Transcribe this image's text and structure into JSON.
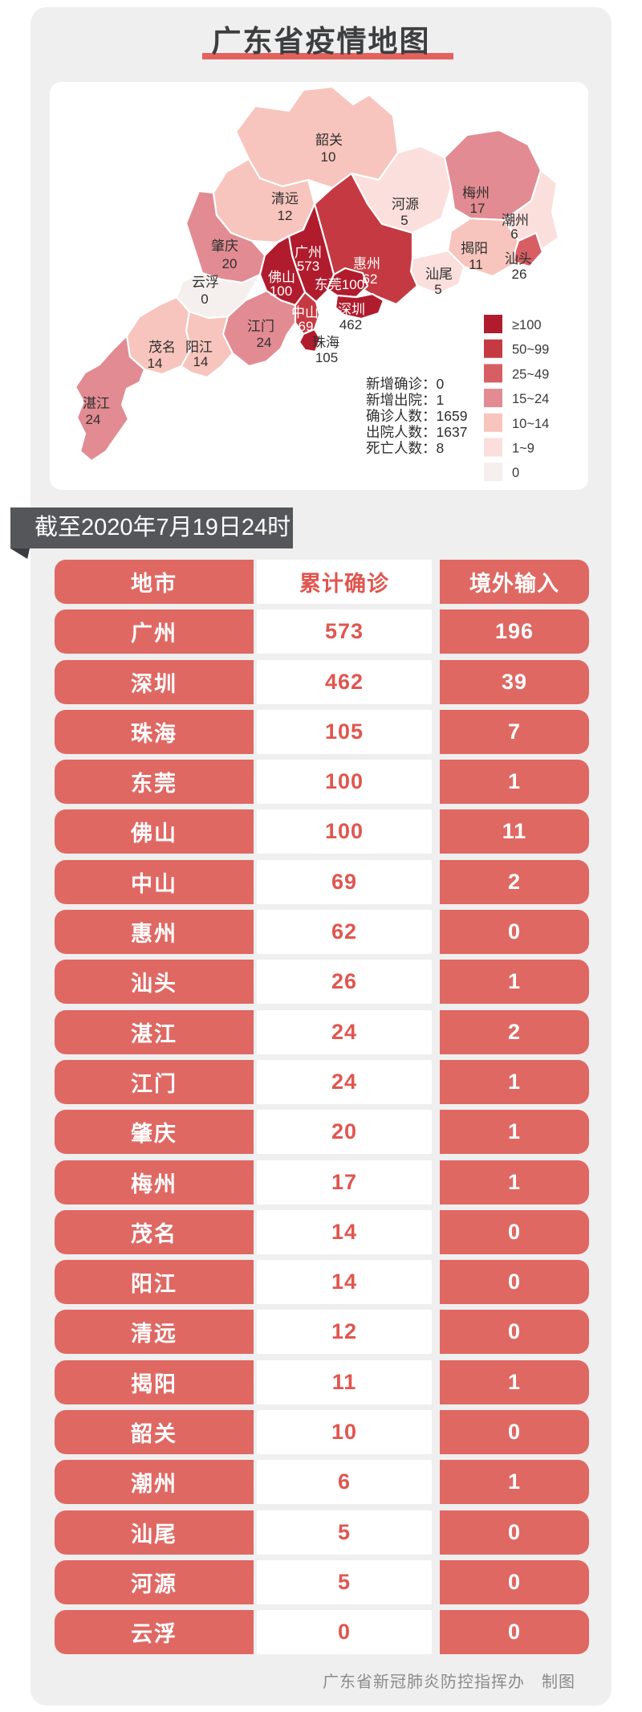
{
  "page": {
    "title": "广东省疫情地图",
    "badge": "截至2020年7月19日24时",
    "footer": "广东省新冠肺炎防控指挥办　制图"
  },
  "colors": {
    "card_bg": "#efefef",
    "title_text": "#3d3e40",
    "title_underline": "#e4625e",
    "badge_bg": "#55565a",
    "badge_fold": "#3b3c3f",
    "table_salmon": "#df6863",
    "table_red_text": "#e0564f",
    "footer_gray": "#8b8b8b",
    "map_dark_label": "#2f2f2f",
    "map_light_label": "#ffffff"
  },
  "map": {
    "legend": [
      {
        "label": "≥100",
        "color": "#b01c2d"
      },
      {
        "label": "50~99",
        "color": "#c53a42"
      },
      {
        "label": "25~49",
        "color": "#d75f64"
      },
      {
        "label": "15~24",
        "color": "#e28b92"
      },
      {
        "label": "10~14",
        "color": "#f7c5bd"
      },
      {
        "label": "1~9",
        "color": "#fbdfdc"
      },
      {
        "label": "0",
        "color": "#f5f0ee"
      }
    ],
    "stats": [
      "新增确诊：0",
      "新增出院：1",
      "确诊人数：1659",
      "出院人数：1637",
      "死亡人数：8"
    ],
    "regions": [
      {
        "id": "zhanjiang",
        "name": "湛江",
        "value": "24",
        "bucket": 3
      },
      {
        "id": "maoming",
        "name": "茂名",
        "value": "14",
        "bucket": 4
      },
      {
        "id": "yangjiang",
        "name": "阳江",
        "value": "14",
        "bucket": 4
      },
      {
        "id": "yunfu",
        "name": "云浮",
        "value": "0",
        "bucket": 6
      },
      {
        "id": "zhaoqing",
        "name": "肇庆",
        "value": "20",
        "bucket": 3
      },
      {
        "id": "qingyuan",
        "name": "清远",
        "value": "12",
        "bucket": 4
      },
      {
        "id": "shaoguan",
        "name": "韶关",
        "value": "10",
        "bucket": 4
      },
      {
        "id": "heyuan",
        "name": "河源",
        "value": "5",
        "bucket": 5
      },
      {
        "id": "meizhou",
        "name": "梅州",
        "value": "17",
        "bucket": 3
      },
      {
        "id": "chaozhou",
        "name": "潮州",
        "value": "6",
        "bucket": 5
      },
      {
        "id": "jieyang",
        "name": "揭阳",
        "value": "11",
        "bucket": 4
      },
      {
        "id": "shantou",
        "name": "汕头",
        "value": "26",
        "bucket": 2
      },
      {
        "id": "shanwei",
        "name": "汕尾",
        "value": "5",
        "bucket": 5
      },
      {
        "id": "jiangmen",
        "name": "江门",
        "value": "24",
        "bucket": 3
      },
      {
        "id": "huizhou",
        "name": "惠州",
        "value": "62",
        "bucket": 1
      },
      {
        "id": "guangzhou",
        "name": "广州",
        "value": "573",
        "bucket": 0
      },
      {
        "id": "foshan",
        "name": "佛山",
        "value": "100",
        "bucket": 0
      },
      {
        "id": "zhongshan",
        "name": "中山",
        "value": "69",
        "bucket": 1
      },
      {
        "id": "dongguan",
        "name": "东莞",
        "value": "100",
        "bucket": 0
      },
      {
        "id": "shenzhen",
        "name": "深圳",
        "value": "462",
        "bucket": 0
      },
      {
        "id": "zhuhai",
        "name": "珠海",
        "value": "105",
        "bucket": 0
      }
    ]
  },
  "table": {
    "headers": [
      "地市",
      "累计确诊",
      "境外输入"
    ],
    "rows": [
      {
        "city": "广州",
        "confirmed": "573",
        "imported": "196"
      },
      {
        "city": "深圳",
        "confirmed": "462",
        "imported": "39"
      },
      {
        "city": "珠海",
        "confirmed": "105",
        "imported": "7"
      },
      {
        "city": "东莞",
        "confirmed": "100",
        "imported": "1"
      },
      {
        "city": "佛山",
        "confirmed": "100",
        "imported": "11"
      },
      {
        "city": "中山",
        "confirmed": "69",
        "imported": "2"
      },
      {
        "city": "惠州",
        "confirmed": "62",
        "imported": "0"
      },
      {
        "city": "汕头",
        "confirmed": "26",
        "imported": "1"
      },
      {
        "city": "湛江",
        "confirmed": "24",
        "imported": "2"
      },
      {
        "city": "江门",
        "confirmed": "24",
        "imported": "1"
      },
      {
        "city": "肇庆",
        "confirmed": "20",
        "imported": "1"
      },
      {
        "city": "梅州",
        "confirmed": "17",
        "imported": "1"
      },
      {
        "city": "茂名",
        "confirmed": "14",
        "imported": "0"
      },
      {
        "city": "阳江",
        "confirmed": "14",
        "imported": "0"
      },
      {
        "city": "清远",
        "confirmed": "12",
        "imported": "0"
      },
      {
        "city": "揭阳",
        "confirmed": "11",
        "imported": "1"
      },
      {
        "city": "韶关",
        "confirmed": "10",
        "imported": "0"
      },
      {
        "city": "潮州",
        "confirmed": "6",
        "imported": "1"
      },
      {
        "city": "汕尾",
        "confirmed": "5",
        "imported": "0"
      },
      {
        "city": "河源",
        "confirmed": "5",
        "imported": "0"
      },
      {
        "city": "云浮",
        "confirmed": "0",
        "imported": "0"
      }
    ]
  },
  "chart_data": {
    "type": "heatmap",
    "title": "广东省疫情地图",
    "as_of": "截至2020年7月19日24时",
    "legend_buckets": [
      "≥100",
      "50~99",
      "25~49",
      "15~24",
      "10~14",
      "1~9",
      "0"
    ],
    "summary": {
      "新增确诊": 0,
      "新增出院": 1,
      "确诊人数": 1659,
      "出院人数": 1637,
      "死亡人数": 8
    },
    "categories": [
      "广州",
      "深圳",
      "珠海",
      "东莞",
      "佛山",
      "中山",
      "惠州",
      "汕头",
      "湛江",
      "江门",
      "肇庆",
      "梅州",
      "茂名",
      "阳江",
      "清远",
      "揭阳",
      "韶关",
      "潮州",
      "汕尾",
      "河源",
      "云浮"
    ],
    "series": [
      {
        "name": "累计确诊",
        "values": [
          573,
          462,
          105,
          100,
          100,
          69,
          62,
          26,
          24,
          24,
          20,
          17,
          14,
          14,
          12,
          11,
          10,
          6,
          5,
          5,
          0
        ]
      },
      {
        "name": "境外输入",
        "values": [
          196,
          39,
          7,
          1,
          11,
          2,
          0,
          1,
          2,
          1,
          1,
          1,
          0,
          0,
          0,
          1,
          0,
          1,
          0,
          0,
          0
        ]
      }
    ]
  }
}
